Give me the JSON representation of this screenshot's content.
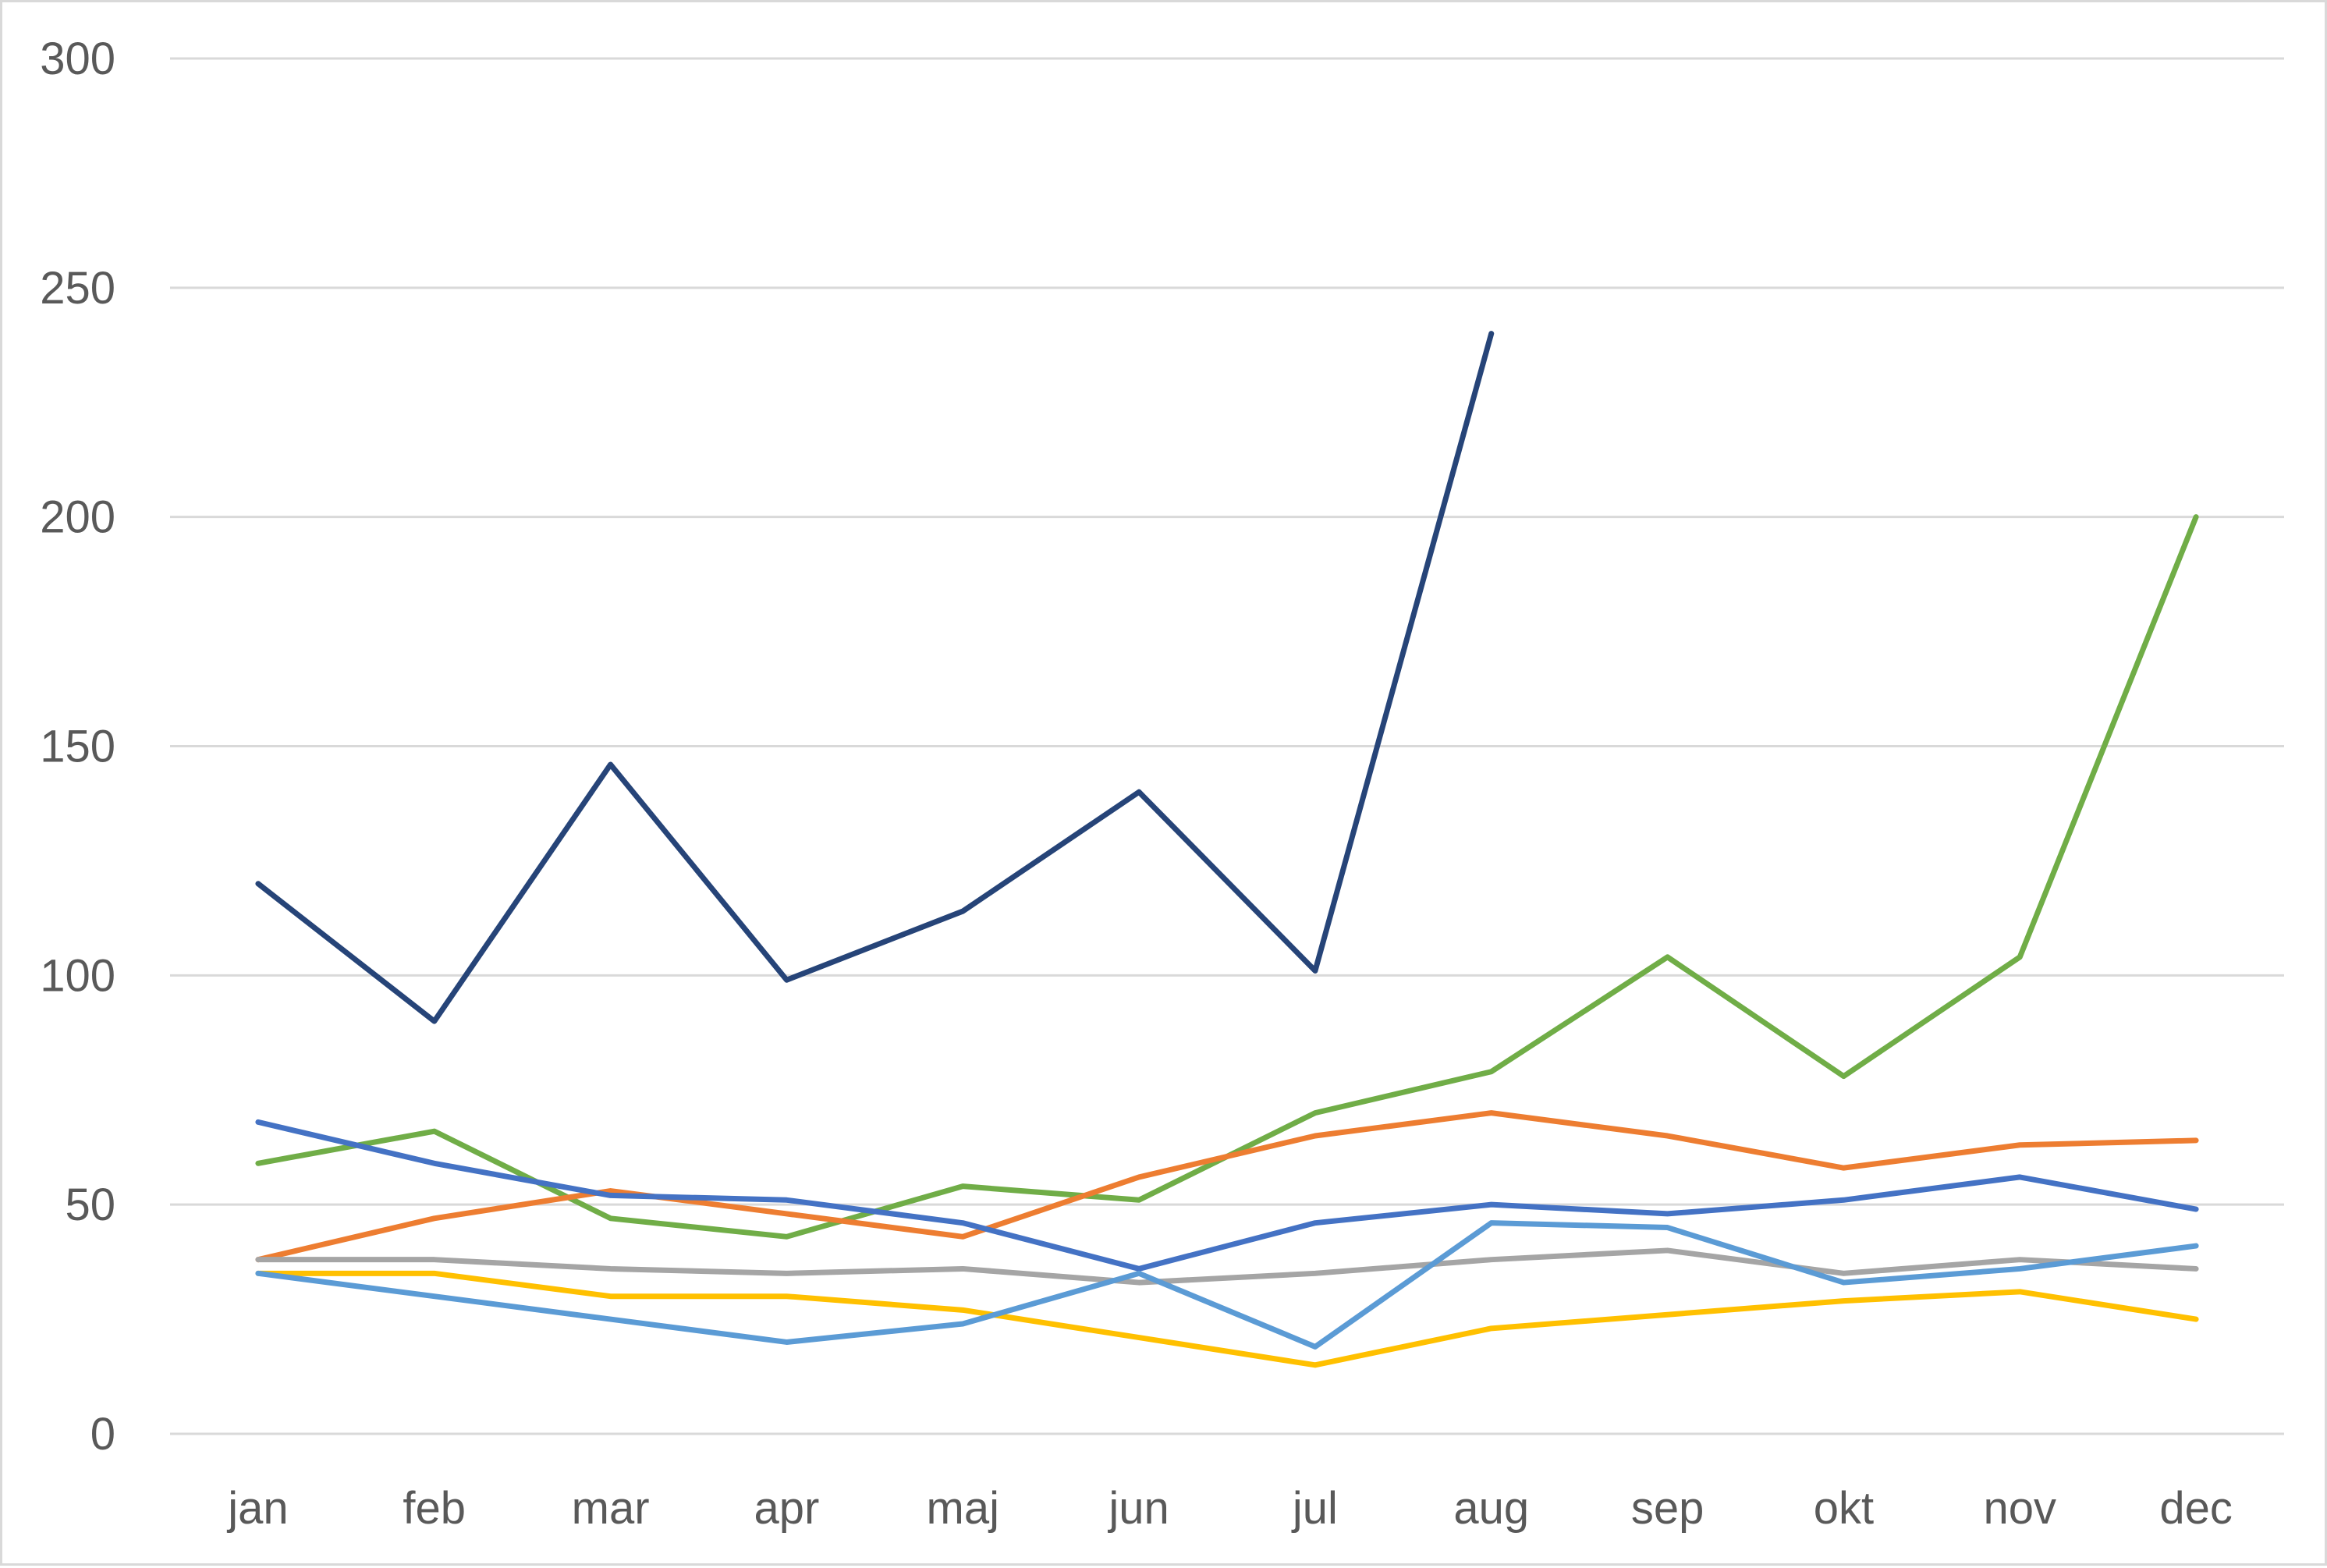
{
  "chart_data": {
    "type": "line",
    "title": "",
    "xlabel": "",
    "ylabel": "",
    "ylim": [
      0,
      300
    ],
    "y_ticks": [
      "0",
      "50",
      "100",
      "150",
      "200",
      "250",
      "300"
    ],
    "grid": true,
    "legend": "none",
    "categories": [
      "jan",
      "feb",
      "mar",
      "apr",
      "maj",
      "jun",
      "jul",
      "aug",
      "sep",
      "okt",
      "nov",
      "dec"
    ],
    "series": [
      {
        "color": "#264478",
        "values": [
          120,
          90,
          146,
          99,
          114,
          140,
          101,
          240,
          null,
          null,
          null,
          null
        ]
      },
      {
        "color": "#70AD47",
        "values": [
          59,
          66,
          47,
          43,
          54,
          51,
          70,
          79,
          104,
          78,
          104,
          200
        ]
      },
      {
        "color": "#ED7D31",
        "values": [
          38,
          47,
          53,
          48,
          43,
          56,
          65,
          70,
          65,
          58,
          63,
          64
        ]
      },
      {
        "color": "#4472C4",
        "values": [
          68,
          59,
          52,
          51,
          46,
          36,
          46,
          50,
          48,
          51,
          56,
          49
        ]
      },
      {
        "color": "#A5A5A5",
        "values": [
          38,
          38,
          36,
          35,
          36,
          33,
          35,
          38,
          40,
          35,
          38,
          36
        ]
      },
      {
        "color": "#FFC000",
        "values": [
          35,
          35,
          30,
          30,
          27,
          21,
          15,
          23,
          26,
          29,
          31,
          25
        ]
      },
      {
        "color": "#5B9BD5",
        "values": [
          35,
          30,
          25,
          20,
          24,
          35,
          19,
          46,
          45,
          33,
          36,
          41
        ]
      }
    ]
  }
}
